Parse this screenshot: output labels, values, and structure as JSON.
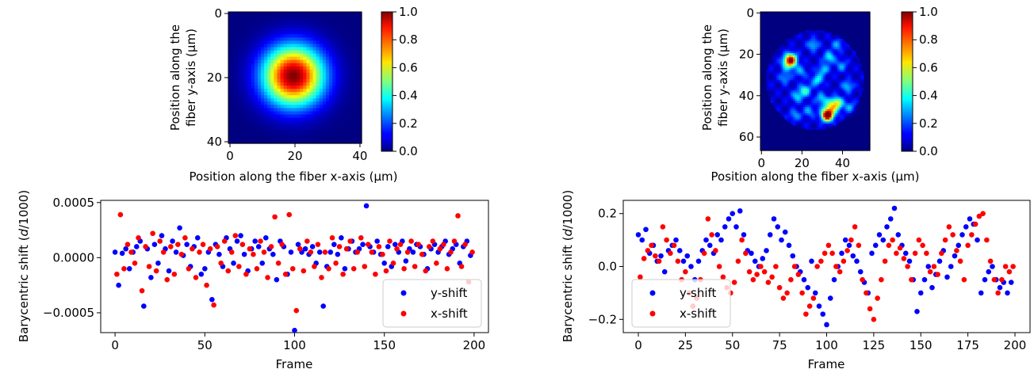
{
  "colormap": "jet",
  "colors": {
    "y_shift": "#0000ff",
    "x_shift": "#ff0000",
    "axis": "#000000"
  },
  "panels": {
    "heat_left": {
      "type": "heatmap",
      "description_pattern": "single gaussian spot",
      "xlabel": "Position along the fiber x-axis (μm)",
      "ylabel_line1": "Position along the",
      "ylabel_line2": "fiber y-axis (μm)",
      "xlim": [
        0,
        41
      ],
      "ylim": [
        0,
        41
      ],
      "xticks": [
        0,
        20,
        40
      ],
      "yticks": [
        0,
        20,
        40
      ],
      "colorbar_ticks": [
        "0.0",
        "0.2",
        "0.4",
        "0.6",
        "0.8",
        "1.0"
      ],
      "spot": {
        "cx": 20,
        "cy": 20,
        "sigma": 6.5
      }
    },
    "heat_right": {
      "type": "heatmap",
      "description_pattern": "speckle pattern with bright spots",
      "xlabel": "Position along the fiber x-axis (μm)",
      "ylabel_line1": "Position along the",
      "ylabel_line2": "fiber y-axis (μm)",
      "xlim": [
        0,
        54
      ],
      "ylim": [
        0,
        67
      ],
      "xticks": [
        0,
        20,
        40
      ],
      "yticks": [
        0,
        20,
        40,
        60
      ],
      "colorbar_ticks": [
        "0.0",
        "0.2",
        "0.4",
        "0.6",
        "0.8",
        "1.0"
      ],
      "speckles": [
        [
          33,
          50,
          1.0,
          2.0
        ],
        [
          35,
          46,
          0.45,
          2.5
        ],
        [
          38,
          44,
          0.4,
          2.0
        ],
        [
          15,
          23,
          0.7,
          2.0
        ],
        [
          14,
          25,
          0.35,
          2.5
        ],
        [
          28,
          33,
          0.3,
          2.0
        ],
        [
          22,
          38,
          0.35,
          2.0
        ],
        [
          18,
          41,
          0.25,
          2.0
        ],
        [
          34,
          22,
          0.3,
          2.0
        ],
        [
          40,
          26,
          0.2,
          2.0
        ],
        [
          26,
          16,
          0.25,
          2.0
        ],
        [
          12,
          32,
          0.2,
          2.0
        ],
        [
          30,
          42,
          0.25,
          2.0
        ],
        [
          43,
          36,
          0.25,
          2.0
        ],
        [
          24,
          48,
          0.2,
          2.0
        ],
        [
          17,
          50,
          0.2,
          2.0
        ],
        [
          38,
          16,
          0.2,
          2.0
        ],
        [
          20,
          29,
          0.2,
          2.0
        ],
        [
          31,
          28,
          0.25,
          2.0
        ],
        [
          44,
          46,
          0.2,
          2.0
        ]
      ]
    }
  },
  "chart_data": [
    {
      "type": "scatter",
      "xlabel": "Frame",
      "ylabel": "Barycentric shift (d/1000)",
      "ylabel_prefix": "Barycentric shift (",
      "ylabel_italic": "d",
      "ylabel_suffix": "/1000)",
      "xlim": [
        -8,
        208
      ],
      "ylim": [
        -0.00068,
        0.00052
      ],
      "xticks": [
        0,
        50,
        100,
        150,
        200
      ],
      "yticks": [
        -0.0005,
        0.0,
        0.0005
      ],
      "ytick_labels": [
        "−0.0005",
        "0.0000",
        "0.0005"
      ],
      "legend_position": "lower-right",
      "series": [
        {
          "name": "y-shift",
          "color": "#0000ff",
          "x": [
            0,
            2,
            4,
            6,
            8,
            10,
            12,
            14,
            16,
            18,
            20,
            22,
            24,
            26,
            28,
            30,
            32,
            34,
            36,
            38,
            40,
            42,
            44,
            46,
            48,
            50,
            52,
            54,
            56,
            58,
            60,
            62,
            64,
            66,
            68,
            70,
            72,
            74,
            76,
            78,
            80,
            82,
            84,
            86,
            88,
            90,
            92,
            94,
            96,
            98,
            100,
            102,
            104,
            106,
            108,
            110,
            112,
            114,
            116,
            118,
            120,
            122,
            124,
            126,
            128,
            130,
            132,
            134,
            136,
            138,
            140,
            142,
            144,
            146,
            148,
            150,
            152,
            154,
            156,
            158,
            160,
            162,
            164,
            166,
            168,
            170,
            172,
            174,
            176,
            178,
            180,
            182,
            184,
            186,
            188,
            190,
            192,
            194,
            196,
            198
          ],
          "y": [
            5e-05,
            -0.00025,
            4e-05,
            8e-05,
            -0.0001,
            5e-05,
            0.0001,
            0.00015,
            -0.00044,
            8e-05,
            -0.00018,
            0.00012,
            -5e-05,
            0.0002,
            8e-05,
            -0.00012,
            0.00015,
            5e-05,
            0.00027,
            2e-05,
            0.00012,
            -8e-05,
            0.0001,
            0.00018,
            -0.00015,
            -0.0001,
            5e-05,
            -0.00038,
            0.00012,
            3e-05,
            -8e-05,
            0.00018,
            8e-05,
            -5e-05,
            0.00015,
            0.0002,
            3e-05,
            -0.00012,
            8e-05,
            0.00015,
            0.0001,
            -5e-05,
            0.00018,
            8e-05,
            3e-05,
            -0.0002,
            0.00015,
            0.0001,
            -0.00015,
            5e-05,
            -0.00066,
            0.00012,
            5e-05,
            8e-05,
            3e-05,
            0.0001,
            -5e-05,
            5e-05,
            -0.00044,
            -8e-05,
            5e-05,
            0.00012,
            3e-05,
            0.00018,
            -0.0001,
            8e-05,
            0.00015,
            5e-05,
            8e-05,
            0.00012,
            0.00047,
            0.0001,
            5e-05,
            0.00015,
            3e-05,
            -5e-05,
            0.0001,
            -8e-05,
            0.00012,
            5e-05,
            0.00015,
            -3e-05,
            8e-05,
            5e-05,
            0.00012,
            0.0001,
            3e-05,
            -0.0001,
            8e-05,
            0.00012,
            5e-05,
            0.0001,
            0.00015,
            3e-05,
            8e-05,
            0.00012,
            -5e-05,
            0.0001,
            0.00015,
            2e-05
          ]
        },
        {
          "name": "x-shift",
          "color": "#ff0000",
          "x": [
            1,
            3,
            5,
            7,
            9,
            11,
            13,
            15,
            17,
            19,
            21,
            23,
            25,
            27,
            29,
            31,
            33,
            35,
            37,
            39,
            41,
            43,
            45,
            47,
            49,
            51,
            53,
            55,
            57,
            59,
            61,
            63,
            65,
            67,
            69,
            71,
            73,
            75,
            77,
            79,
            81,
            83,
            85,
            87,
            89,
            91,
            93,
            95,
            97,
            99,
            101,
            103,
            105,
            107,
            109,
            111,
            113,
            115,
            117,
            119,
            121,
            123,
            125,
            127,
            129,
            131,
            133,
            135,
            137,
            139,
            141,
            143,
            145,
            147,
            149,
            151,
            153,
            155,
            157,
            159,
            161,
            163,
            165,
            167,
            169,
            171,
            173,
            175,
            177,
            179,
            181,
            183,
            185,
            187,
            189,
            191,
            193,
            195,
            197,
            199
          ],
          "y": [
            -0.00015,
            0.00039,
            -0.0001,
            0.00012,
            5e-05,
            -5e-05,
            0.00018,
            -0.0003,
            0.0001,
            -8e-05,
            0.00022,
            -0.00012,
            0.00015,
            5e-05,
            -0.0002,
            0.0001,
            -0.00015,
            0.00012,
            3e-05,
            0.00018,
            -0.0001,
            8e-05,
            -0.00018,
            5e-05,
            0.00012,
            -0.00025,
            8e-05,
            -0.00043,
            0.0001,
            -5e-05,
            0.00015,
            -0.00012,
            5e-05,
            0.0002,
            -8e-05,
            0.00012,
            -0.00015,
            8e-05,
            3e-05,
            -0.0001,
            0.00015,
            5e-05,
            -0.00018,
            0.0001,
            0.00037,
            -5e-05,
            0.00012,
            -0.00015,
            0.00039,
            -0.0001,
            -0.00048,
            8e-05,
            -0.00012,
            0.00015,
            5e-05,
            -8e-05,
            0.00012,
            -0.00018,
            5e-05,
            -0.0001,
            0.00018,
            -5e-05,
            0.0001,
            -0.00015,
            8e-05,
            0.00015,
            -0.0001,
            5e-05,
            0.00018,
            -8e-05,
            0.00012,
            5e-05,
            -0.00015,
            0.0001,
            3e-05,
            -0.00012,
            0.00015,
            -5e-05,
            8e-05,
            0.00012,
            -0.0001,
            5e-05,
            0.00015,
            -8e-05,
            0.00012,
            3e-05,
            -0.00012,
            0.0001,
            0.00015,
            -5e-05,
            8e-05,
            0.00012,
            -0.0001,
            5e-05,
            0.00015,
            0.00038,
            -8e-05,
            0.00012,
            -0.00022,
            5e-05
          ]
        }
      ]
    },
    {
      "type": "scatter",
      "xlabel": "Frame",
      "ylabel": "Barycentric shift (d/1000)",
      "ylabel_prefix": "Barycentric shift (",
      "ylabel_italic": "d",
      "ylabel_suffix": "/1000)",
      "xlim": [
        -8,
        208
      ],
      "ylim": [
        -0.25,
        0.25
      ],
      "xticks": [
        0,
        25,
        50,
        75,
        100,
        125,
        150,
        175,
        200
      ],
      "yticks": [
        -0.2,
        0.0,
        0.2
      ],
      "ytick_labels": [
        "−0.2",
        "0.0",
        "0.2"
      ],
      "legend_position": "lower-left",
      "series": [
        {
          "name": "y-shift",
          "color": "#0000ff",
          "x": [
            0,
            2,
            4,
            6,
            8,
            10,
            12,
            14,
            16,
            18,
            20,
            22,
            24,
            26,
            28,
            30,
            32,
            34,
            36,
            38,
            40,
            42,
            44,
            46,
            48,
            50,
            52,
            54,
            56,
            58,
            60,
            62,
            64,
            66,
            68,
            70,
            72,
            74,
            76,
            78,
            80,
            82,
            84,
            86,
            88,
            90,
            92,
            94,
            96,
            98,
            100,
            102,
            104,
            106,
            108,
            110,
            112,
            114,
            116,
            118,
            120,
            122,
            124,
            126,
            128,
            130,
            132,
            134,
            136,
            138,
            140,
            142,
            144,
            146,
            148,
            150,
            152,
            154,
            156,
            158,
            160,
            162,
            164,
            166,
            168,
            170,
            172,
            174,
            176,
            178,
            180,
            182,
            184,
            186,
            188,
            190,
            192,
            194,
            196,
            198
          ],
          "y": [
            0.12,
            0.1,
            0.14,
            0.05,
            0.08,
            0.02,
            0.04,
            -0.02,
            0.06,
            0.08,
            0.1,
            0.06,
            0.02,
            0.04,
            0.0,
            -0.05,
            0.02,
            0.06,
            0.1,
            0.08,
            0.05,
            0.12,
            0.1,
            0.15,
            0.18,
            0.2,
            0.15,
            0.21,
            0.12,
            0.06,
            0.05,
            0.02,
            0.0,
            0.03,
            0.06,
            0.12,
            0.18,
            0.15,
            0.1,
            0.13,
            0.08,
            0.04,
            0.0,
            -0.02,
            -0.05,
            -0.08,
            0.02,
            -0.1,
            -0.15,
            -0.18,
            -0.22,
            -0.12,
            -0.05,
            0.0,
            0.05,
            0.1,
            0.08,
            0.04,
            0.02,
            -0.02,
            -0.06,
            -0.1,
            0.05,
            0.08,
            0.12,
            0.1,
            0.15,
            0.18,
            0.22,
            0.12,
            0.08,
            0.05,
            0.02,
            -0.05,
            -0.17,
            -0.1,
            -0.05,
            0.0,
            -0.08,
            -0.03,
            0.02,
            0.06,
            -0.04,
            0.0,
            0.04,
            0.08,
            0.12,
            0.15,
            0.18,
            0.16,
            0.1,
            -0.1,
            -0.05,
            -0.02,
            0.0,
            -0.05,
            -0.08,
            -0.06,
            -0.1,
            -0.06
          ]
        },
        {
          "name": "x-shift",
          "color": "#ff0000",
          "x": [
            1,
            3,
            5,
            7,
            9,
            11,
            13,
            15,
            17,
            19,
            21,
            23,
            25,
            27,
            29,
            31,
            33,
            35,
            37,
            39,
            41,
            43,
            45,
            47,
            49,
            51,
            53,
            55,
            57,
            59,
            61,
            63,
            65,
            67,
            69,
            71,
            73,
            75,
            77,
            79,
            81,
            83,
            85,
            87,
            89,
            91,
            93,
            95,
            97,
            99,
            101,
            103,
            105,
            107,
            109,
            111,
            113,
            115,
            117,
            119,
            121,
            123,
            125,
            127,
            129,
            131,
            133,
            135,
            137,
            139,
            141,
            143,
            145,
            147,
            149,
            151,
            153,
            155,
            157,
            159,
            161,
            163,
            165,
            167,
            169,
            171,
            173,
            175,
            177,
            179,
            181,
            183,
            185,
            187,
            189,
            191,
            193,
            195,
            197,
            199
          ],
          "y": [
            -0.04,
            0.03,
            0.06,
            0.08,
            0.04,
            0.02,
            0.15,
            0.1,
            0.05,
            0.08,
            0.02,
            -0.05,
            -0.02,
            -0.1,
            -0.15,
            -0.12,
            -0.05,
            0.05,
            0.18,
            0.12,
            0.06,
            0.0,
            -0.04,
            -0.08,
            -0.1,
            -0.06,
            0.02,
            0.1,
            0.05,
            -0.02,
            -0.05,
            -0.03,
            0.0,
            -0.02,
            -0.06,
            -0.04,
            0.0,
            -0.08,
            -0.12,
            -0.1,
            -0.05,
            0.0,
            -0.03,
            -0.1,
            -0.18,
            -0.15,
            -0.12,
            0.0,
            0.02,
            0.05,
            0.08,
            0.05,
            0.0,
            -0.02,
            0.02,
            0.06,
            0.1,
            0.15,
            0.08,
            -0.05,
            -0.1,
            -0.16,
            -0.2,
            -0.12,
            -0.05,
            0.02,
            0.08,
            0.1,
            0.05,
            0.07,
            0.03,
            0.0,
            -0.05,
            0.05,
            0.1,
            0.08,
            0.05,
            -0.02,
            0.0,
            -0.03,
            0.05,
            0.1,
            0.15,
            0.12,
            0.06,
            0.02,
            -0.05,
            0.08,
            0.12,
            0.16,
            0.19,
            0.2,
            0.1,
            0.02,
            -0.05,
            -0.1,
            -0.05,
            0.0,
            -0.02,
            0.0
          ]
        }
      ]
    }
  ]
}
